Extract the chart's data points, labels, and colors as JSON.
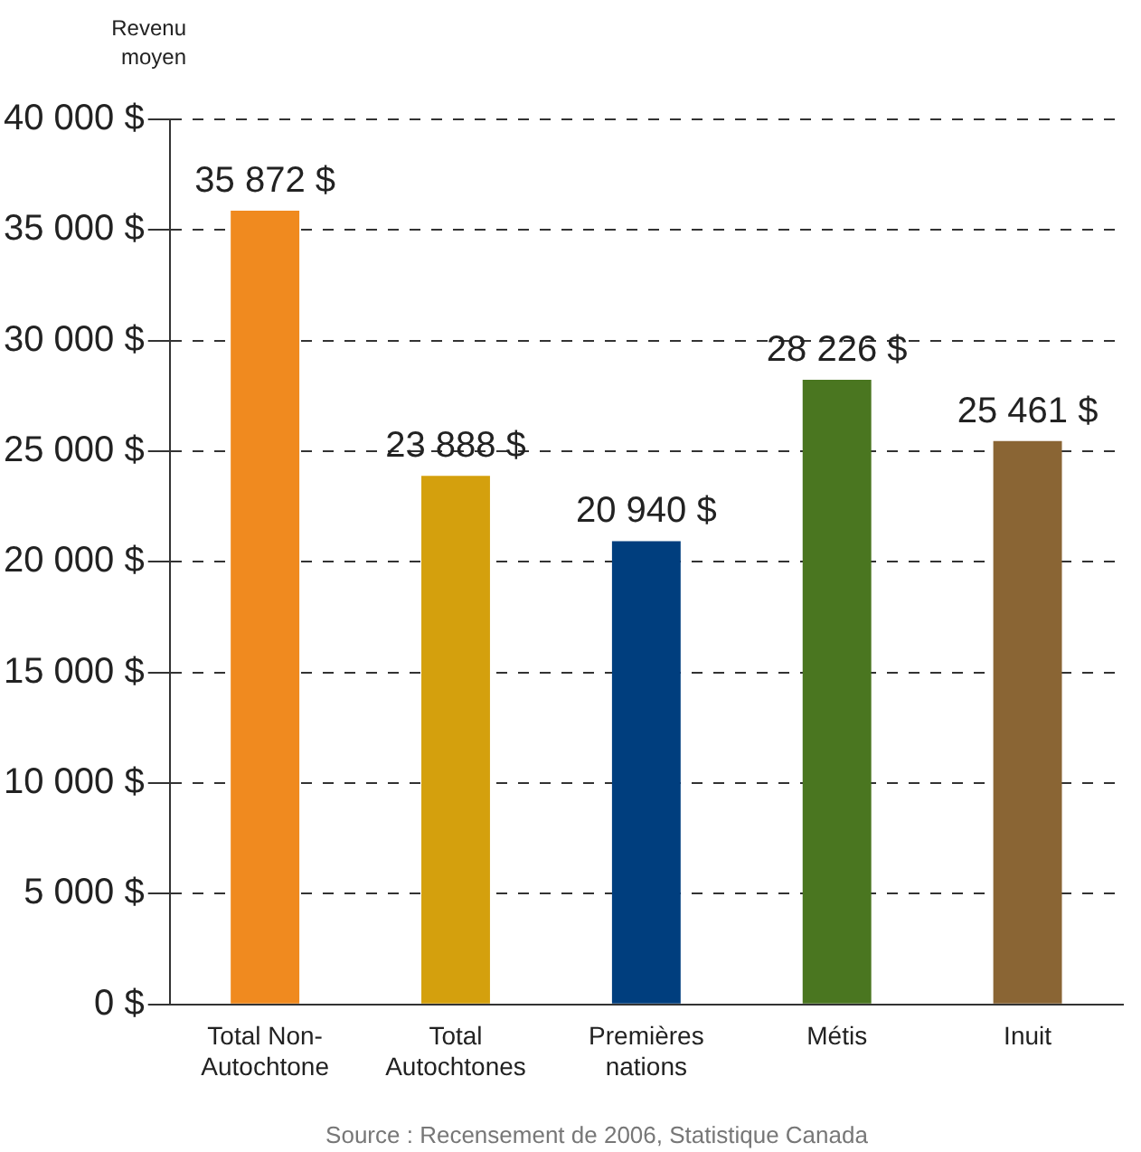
{
  "chart_data": {
    "type": "bar",
    "ylabel": "Revenu\nmoyen",
    "categories": [
      "Total Non-\nAutochtone",
      "Total\nAutochtones",
      "Premières\nnations",
      "Métis",
      "Inuit"
    ],
    "values": [
      35872,
      23888,
      20940,
      28226,
      25461
    ],
    "colors": [
      "#f08a1f",
      "#d4a00d",
      "#003e7e",
      "#4a7620",
      "#8a6534"
    ],
    "value_labels": [
      "35 872 $",
      "23 888 $",
      "20 940 $",
      "28 226 $",
      "25 461 $"
    ],
    "ylim": [
      0,
      40000
    ],
    "yticks": [
      {
        "value": 0,
        "label": "0 $"
      },
      {
        "value": 5000,
        "label": "5 000 $"
      },
      {
        "value": 10000,
        "label": "10 000 $"
      },
      {
        "value": 15000,
        "label": "15 000 $"
      },
      {
        "value": 20000,
        "label": "20 000 $"
      },
      {
        "value": 25000,
        "label": "25 000 $"
      },
      {
        "value": 30000,
        "label": "30 000 $"
      },
      {
        "value": 35000,
        "label": "35 000 $"
      },
      {
        "value": 40000,
        "label": "40 000 $"
      }
    ],
    "grid": "y",
    "legend": false,
    "annotations": [
      "Source : Recensement de 2006, Statistique Canada"
    ]
  }
}
